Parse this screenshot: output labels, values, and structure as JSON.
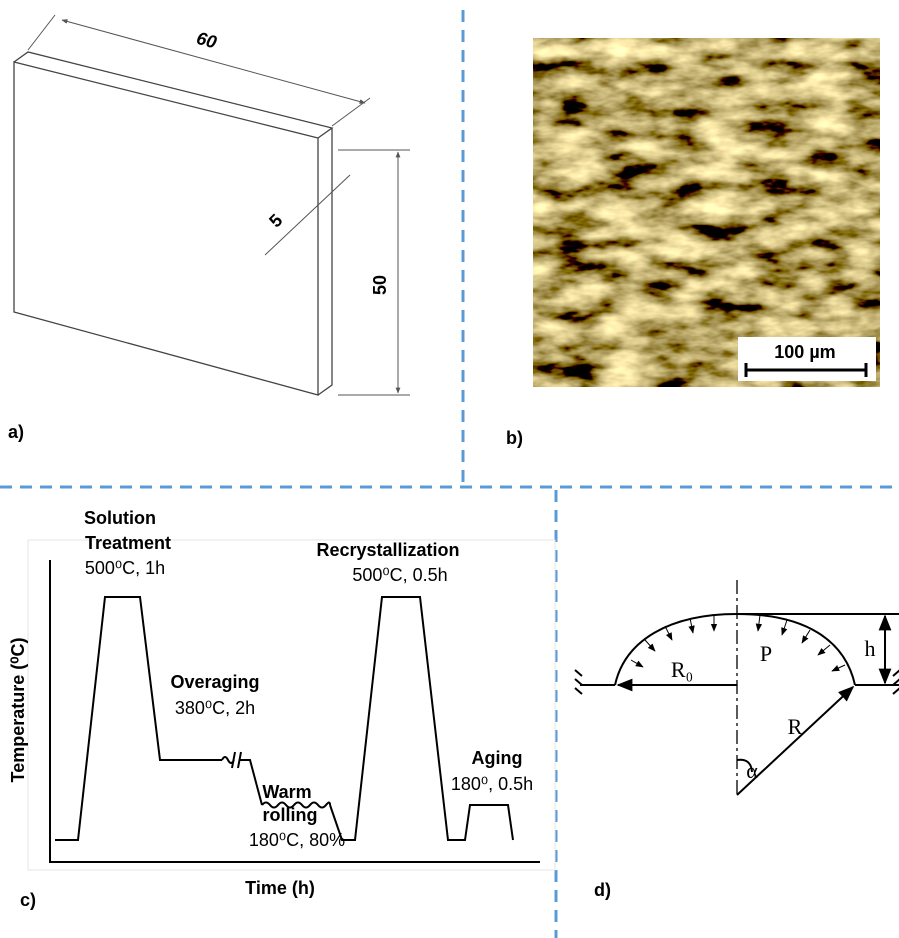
{
  "panel_a": {
    "dim_length": "60",
    "dim_thickness": "5",
    "dim_height": "50",
    "label": "a)"
  },
  "panel_b": {
    "scale_bar": "100 µm",
    "label": "b)"
  },
  "panel_c": {
    "steps": [
      {
        "title": [
          "Solution",
          "Treatment"
        ],
        "condition": "500⁰C, 1h"
      },
      {
        "title": [
          "Overaging"
        ],
        "condition": "380⁰C, 2h"
      },
      {
        "title": [
          "Warm",
          "rolling"
        ],
        "condition": "180⁰C, 80%"
      },
      {
        "title": [
          "Recrystallization"
        ],
        "condition": "500⁰C, 0.5h"
      },
      {
        "title": [
          "Aging"
        ],
        "condition": "180⁰, 0.5h"
      }
    ],
    "y_axis_label": "Temperature (⁰C)",
    "x_axis_label": "Time (h)",
    "label": "c)"
  },
  "panel_d": {
    "r0": "R₀",
    "p": "P",
    "h": "h",
    "r": "R",
    "alpha": "α",
    "label": "d)"
  }
}
